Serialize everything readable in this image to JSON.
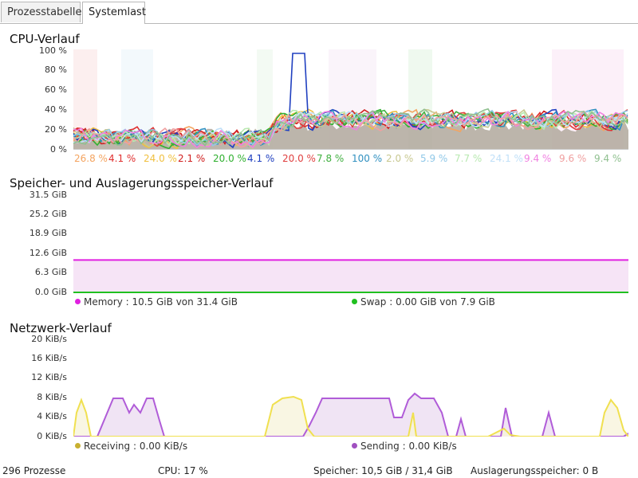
{
  "tabs": [
    {
      "label": "Prozesstabelle",
      "active": false
    },
    {
      "label": "Systemlast",
      "active": true
    }
  ],
  "cpu": {
    "title": "CPU-Verlauf",
    "y_ticks": [
      "100 %",
      "80 %",
      "60 %",
      "40 %",
      "20 %",
      "0 %"
    ],
    "cores": [
      {
        "value": "26.8 %",
        "color": "#f4a460"
      },
      {
        "value": "4.1 %",
        "color": "#e03030"
      },
      {
        "value": "24.0 %",
        "color": "#f0c040"
      },
      {
        "value": "2.1 %",
        "color": "#d02020"
      },
      {
        "value": "20.0 %",
        "color": "#30b030"
      },
      {
        "value": "4.1 %",
        "color": "#2040c0"
      },
      {
        "value": "20.0 %",
        "color": "#e04040"
      },
      {
        "value": "7.8 %",
        "color": "#40b040"
      },
      {
        "value": "100 %",
        "color": "#3090c0"
      },
      {
        "value": "2.0 %",
        "color": "#c8c890"
      },
      {
        "value": "5.9 %",
        "color": "#90c8e8"
      },
      {
        "value": "7.7 %",
        "color": "#b8e8b0"
      },
      {
        "value": "24.1 %",
        "color": "#c0e0f8"
      },
      {
        "value": "9.4 %",
        "color": "#f080e0"
      },
      {
        "value": "9.6 %",
        "color": "#f0a0a0"
      },
      {
        "value": "9.4 %",
        "color": "#90c090"
      }
    ]
  },
  "memory": {
    "title": "Speicher- und Auslagerungsspeicher-Verlauf",
    "y_ticks": [
      "31.5 GiB",
      "25.2 GiB",
      "18.9 GiB",
      "12.6 GiB",
      "6.3 GiB",
      "0.0 GiB"
    ],
    "memory_legend": "Memory : 10.5 GiB von 31.4 GiB",
    "swap_legend": "Swap : 0.00 GiB von 7.9 GiB",
    "memory_color": "#e020e0",
    "swap_color": "#20c020"
  },
  "network": {
    "title": "Netzwerk-Verlauf",
    "y_ticks": [
      "20 KiB/s",
      "16 KiB/s",
      "12 KiB/s",
      "8 KiB/s",
      "4 KiB/s",
      "0 KiB/s"
    ],
    "receiving_legend": "Receiving : 0.00 KiB/s",
    "sending_legend": "Sending : 0.00 KiB/s",
    "receiving_color": "#c8b030",
    "sending_color": "#a050c0"
  },
  "status": {
    "processes": "296 Prozesse",
    "cpu": "CPU: 17 %",
    "memory": "Speicher: 10,5 GiB / 31,4 GiB",
    "swap": "Auslagerungsspeicher: 0 B"
  },
  "chart_data": [
    {
      "type": "line",
      "title": "CPU-Verlauf",
      "ylim": [
        0,
        100
      ],
      "y_unit": "%",
      "series": [
        {
          "values": [
            26.8
          ]
        },
        {
          "values": [
            4.1
          ]
        },
        {
          "values": [
            24.0
          ]
        },
        {
          "values": [
            2.1
          ]
        },
        {
          "values": [
            20.0
          ]
        },
        {
          "values": [
            4.1
          ]
        },
        {
          "values": [
            20.0
          ]
        },
        {
          "values": [
            7.8
          ]
        },
        {
          "values": [
            100
          ]
        },
        {
          "values": [
            2.0
          ]
        },
        {
          "values": [
            5.9
          ]
        },
        {
          "values": [
            7.7
          ]
        },
        {
          "values": [
            24.1
          ]
        },
        {
          "values": [
            9.4
          ]
        },
        {
          "values": [
            9.6
          ]
        },
        {
          "values": [
            9.4
          ]
        }
      ]
    },
    {
      "type": "area",
      "title": "Speicher- und Auslagerungsspeicher-Verlauf",
      "ylim": [
        0,
        31.5
      ],
      "y_unit": "GiB",
      "series": [
        {
          "name": "Memory",
          "values": [
            10.5
          ]
        },
        {
          "name": "Swap",
          "values": [
            0.0
          ]
        }
      ]
    },
    {
      "type": "line",
      "title": "Netzwerk-Verlauf",
      "ylim": [
        0,
        20
      ],
      "y_unit": "KiB/s",
      "series": [
        {
          "name": "Receiving",
          "values": [
            0.0
          ]
        },
        {
          "name": "Sending",
          "values": [
            0.0
          ]
        }
      ]
    }
  ]
}
